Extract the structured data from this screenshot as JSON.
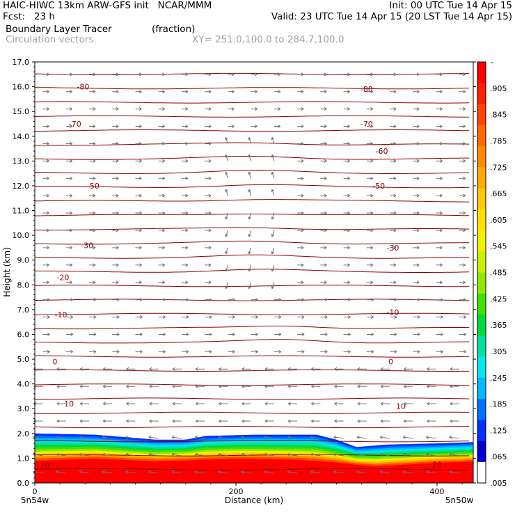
{
  "header": {
    "line1_left": "HAIC-HIWC 13km ARW-GFS init   NCAR/MMM",
    "line1_right": "Init: 00 UTC Tue 14 Apr 15",
    "line2_left": "Fcst:   23 h",
    "line2_right": "Valid: 23 UTC Tue 14 Apr 15 (20 LST Tue 14 Apr 15)",
    "line3_left": "Boundary Layer Tracer",
    "line3_mid": "(fraction)",
    "line4_left": "Circulation vectors",
    "line4_mid": "XY= 251.0,100.0 to 284.7,100.0"
  },
  "chart_data": {
    "type": "cross-section",
    "xlabel": "Distance (km)",
    "ylabel": "Height (km)",
    "xlim": [
      0,
      436
    ],
    "ylim": [
      0,
      17
    ],
    "x_ticks": [
      0,
      200,
      400
    ],
    "y_ticks": [
      "0.0",
      "1.0",
      "2.0",
      "3.0",
      "4.0",
      "5.0",
      "6.0",
      "7.0",
      "8.0",
      "9.0",
      "10.0",
      "11.0",
      "12.0",
      "13.0",
      "14.0",
      "15.0",
      "16.0",
      "17.0"
    ],
    "x_left_label": "5n54w",
    "x_right_label": "5n50w",
    "colorbar_labels": [
      "–",
      ".905",
      ".845",
      ".785",
      ".725",
      ".665",
      ".605",
      ".545",
      ".485",
      ".425",
      ".365",
      ".305",
      ".245",
      ".185",
      ".125",
      ".065",
      ".005"
    ],
    "colorbar_colors": [
      "#ff0000",
      "#ff2000",
      "#ff4400",
      "#ff6a00",
      "#ff8c00",
      "#ffaa00",
      "#ffc800",
      "#ffe000",
      "#f0f000",
      "#c8f000",
      "#90e800",
      "#40e000",
      "#00d840",
      "#00e0a0",
      "#00e8e8",
      "#00b8ff",
      "#0070ff",
      "#0030ff",
      "#0000d0",
      "#ffffff"
    ],
    "contour_labels_left": [
      "-80",
      "-70",
      "-50",
      "-30",
      "-20",
      "-10",
      "0",
      "10",
      "20"
    ],
    "contour_labels_right": [
      "-80",
      "-70",
      "-60",
      "-50",
      "-30",
      "-10",
      "0",
      "10",
      "20"
    ],
    "contour_label_values": [
      -80,
      -70,
      -60,
      -50,
      -30,
      -20,
      -10,
      0,
      10,
      20
    ],
    "tracer_top_km": [
      [
        0,
        2.0
      ],
      [
        60,
        1.95
      ],
      [
        120,
        1.75
      ],
      [
        150,
        1.75
      ],
      [
        170,
        1.9
      ],
      [
        220,
        1.95
      ],
      [
        280,
        1.95
      ],
      [
        300,
        1.75
      ],
      [
        320,
        1.45
      ],
      [
        350,
        1.55
      ],
      [
        400,
        1.6
      ],
      [
        436,
        1.65
      ]
    ],
    "tracer_red_top_km": [
      [
        0,
        0.8
      ],
      [
        60,
        0.9
      ],
      [
        120,
        0.8
      ],
      [
        200,
        0.9
      ],
      [
        260,
        0.85
      ],
      [
        300,
        0.75
      ],
      [
        340,
        0.6
      ],
      [
        400,
        0.75
      ],
      [
        436,
        0.8
      ]
    ]
  }
}
